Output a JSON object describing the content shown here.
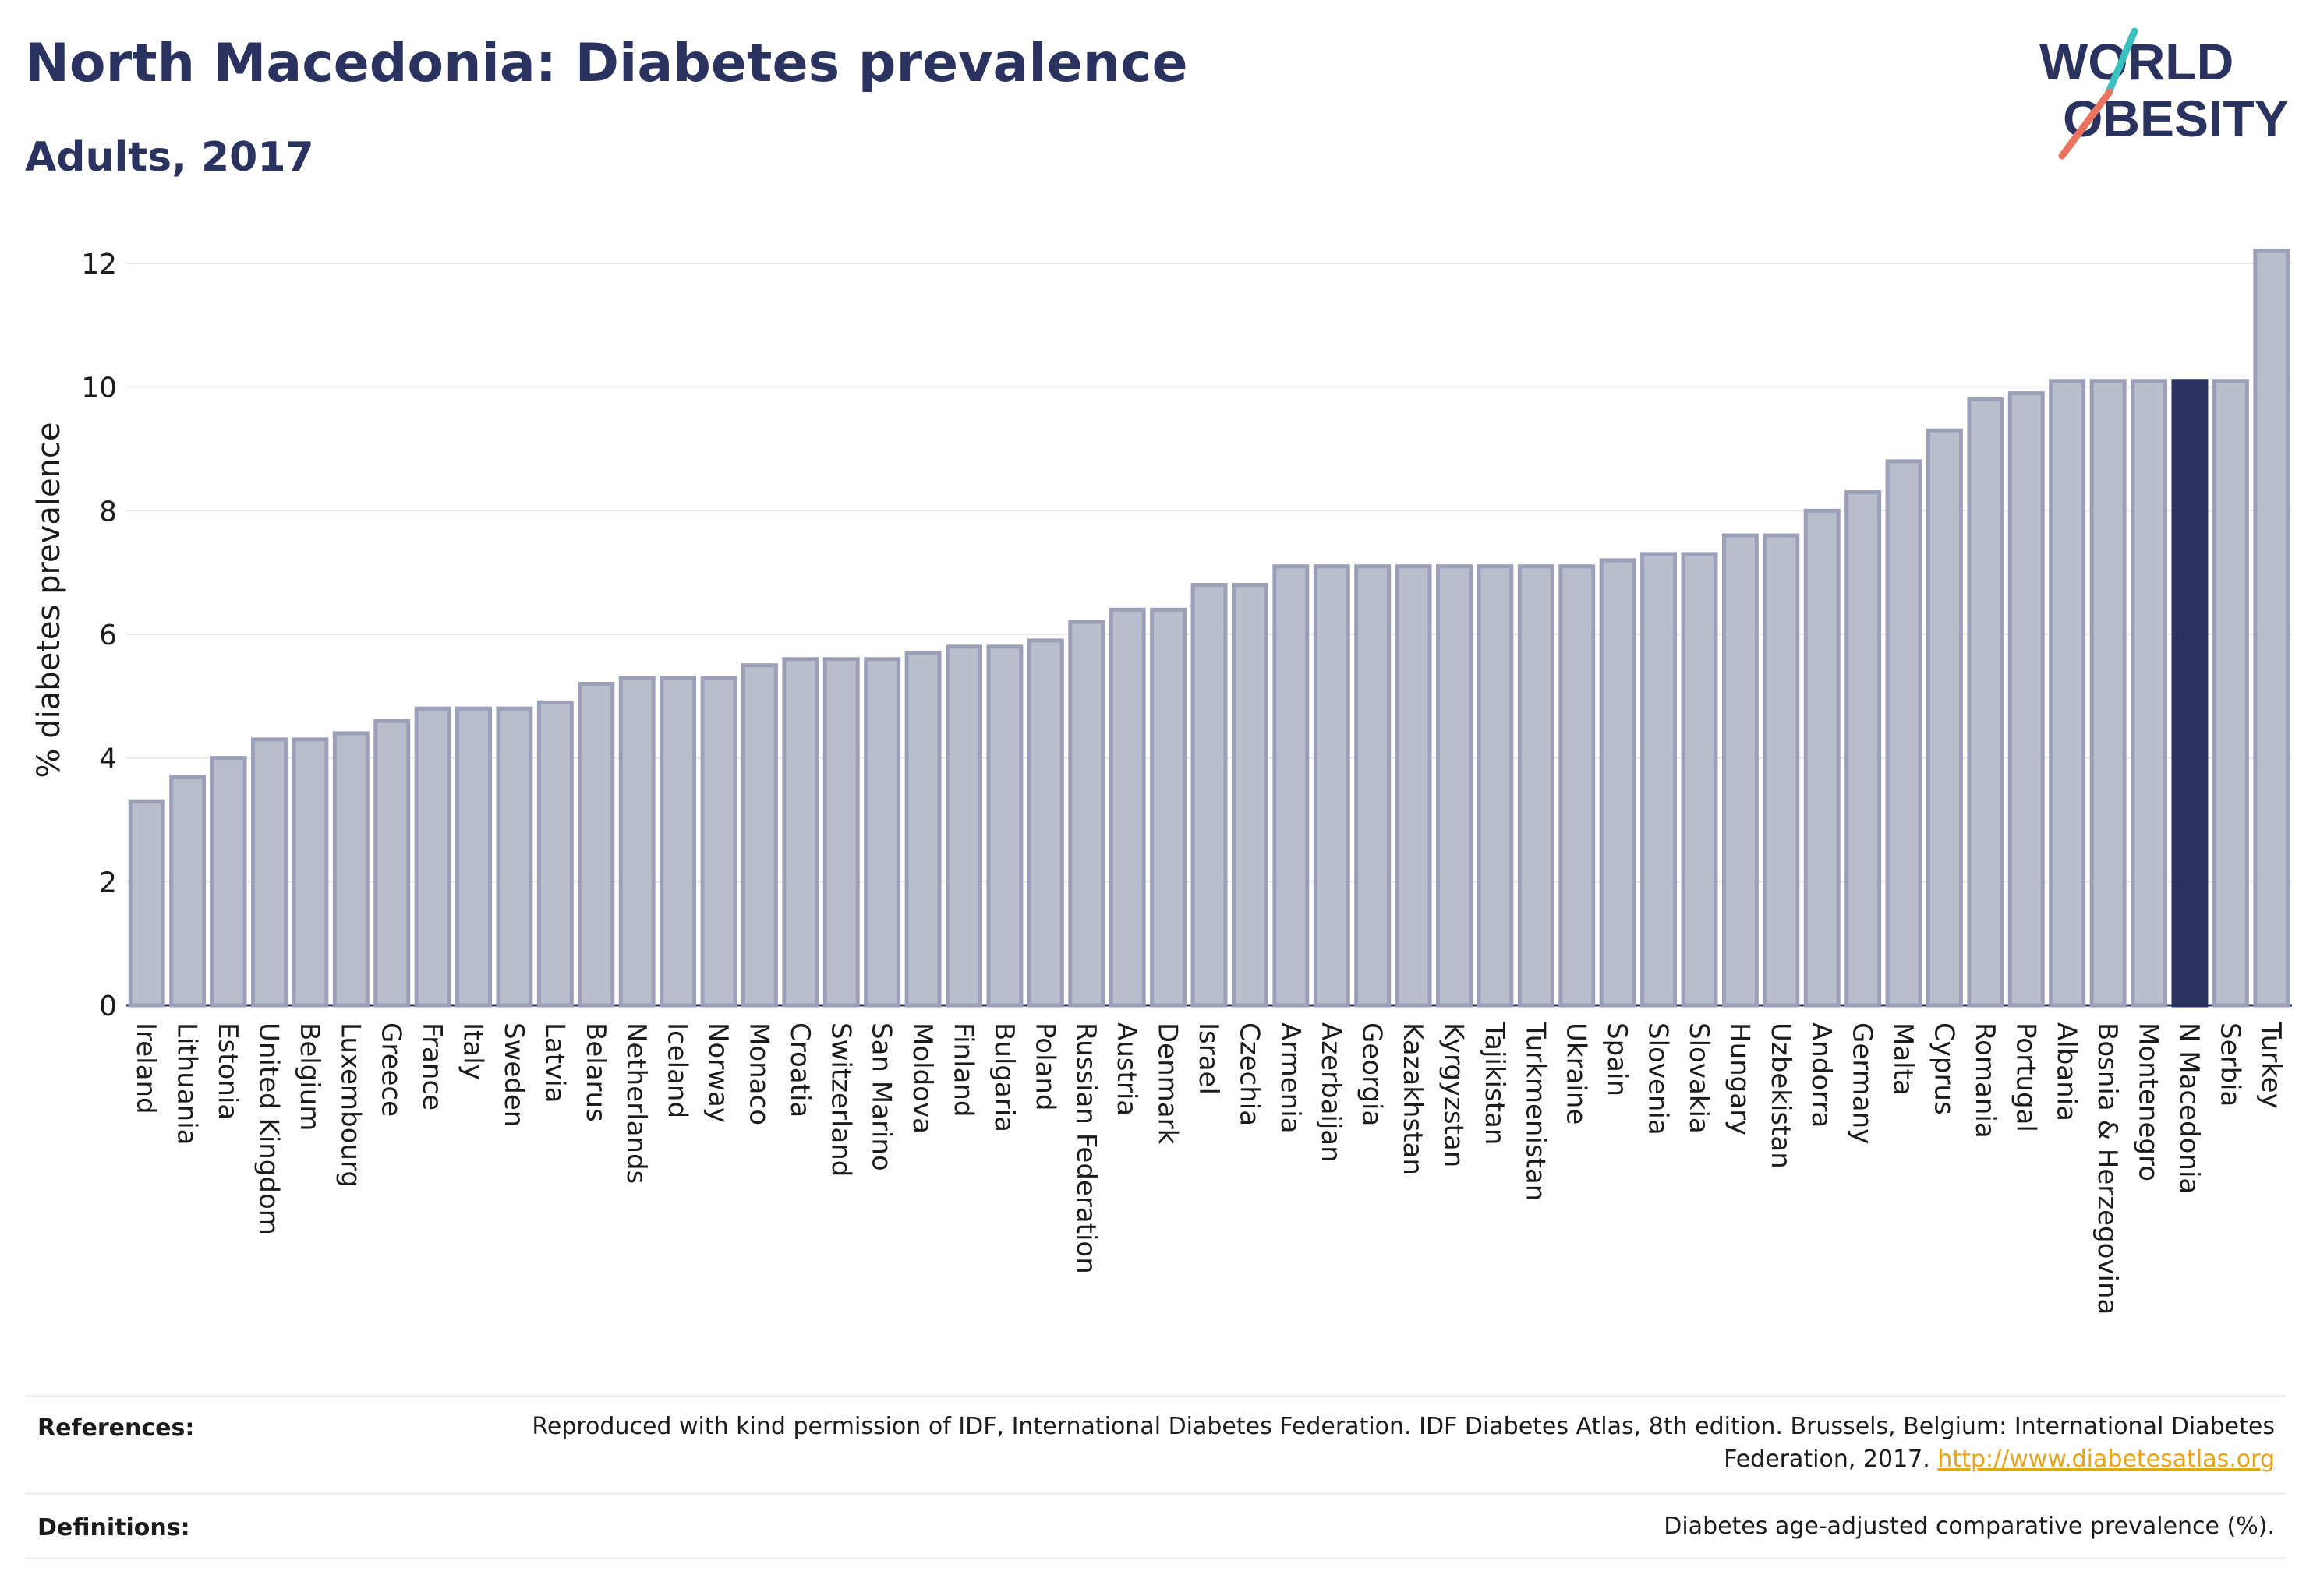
{
  "header": {
    "title": "North Macedonia: Diabetes prevalence",
    "subtitle": "Adults, 2017"
  },
  "logo": {
    "line1": "WORLD",
    "line2": "OBESITY"
  },
  "colors": {
    "bar": "#b9bdcc",
    "bar_stroke": "#9ba0b8",
    "highlight": "#2a3360",
    "grid": "#e6e6ea",
    "axis_text": "#1b1b1b",
    "logo_teal": "#3bbfbf",
    "logo_coral": "#e9735f",
    "link": "#e8a317"
  },
  "chart_data": {
    "type": "bar",
    "title": "North Macedonia: Diabetes prevalence",
    "subtitle": "Adults, 2017",
    "xlabel": "",
    "ylabel": "% diabetes prevalence",
    "ylim": [
      0,
      12.5
    ],
    "yticks": [
      0,
      2,
      4,
      6,
      8,
      10,
      12
    ],
    "grid": true,
    "highlight": "N Macedonia",
    "categories": [
      "Ireland",
      "Lithuania",
      "Estonia",
      "United Kingdom",
      "Belgium",
      "Luxembourg",
      "Greece",
      "France",
      "Italy",
      "Sweden",
      "Latvia",
      "Belarus",
      "Netherlands",
      "Iceland",
      "Norway",
      "Monaco",
      "Croatia",
      "Switzerland",
      "San Marino",
      "Moldova",
      "Finland",
      "Bulgaria",
      "Poland",
      "Russian Federation",
      "Austria",
      "Denmark",
      "Israel",
      "Czechia",
      "Armenia",
      "Azerbaijan",
      "Georgia",
      "Kazakhstan",
      "Kyrgyzstan",
      "Tajikistan",
      "Turkmenistan",
      "Ukraine",
      "Spain",
      "Slovenia",
      "Slovakia",
      "Hungary",
      "Uzbekistan",
      "Andorra",
      "Germany",
      "Malta",
      "Cyprus",
      "Romania",
      "Portugal",
      "Albania",
      "Bosnia & Herzegovina",
      "Montenegro",
      "N Macedonia",
      "Serbia",
      "Turkey"
    ],
    "values": [
      3.3,
      3.7,
      4.0,
      4.3,
      4.3,
      4.4,
      4.6,
      4.8,
      4.8,
      4.8,
      4.9,
      5.2,
      5.3,
      5.3,
      5.3,
      5.5,
      5.6,
      5.6,
      5.6,
      5.7,
      5.8,
      5.8,
      5.9,
      6.2,
      6.4,
      6.4,
      6.8,
      6.8,
      7.1,
      7.1,
      7.1,
      7.1,
      7.1,
      7.1,
      7.1,
      7.1,
      7.2,
      7.3,
      7.3,
      7.6,
      7.6,
      8.0,
      8.3,
      8.8,
      9.3,
      9.8,
      9.9,
      10.1,
      10.1,
      10.1,
      10.1,
      10.1,
      12.2
    ]
  },
  "footer": {
    "references_label": "References:",
    "references_text": "Reproduced with kind permission of IDF, International Diabetes Federation. IDF Diabetes Atlas, 8th edition. Brussels, Belgium: International Diabetes Federation, 2017.",
    "references_link": "http://www.diabetesatlas.org",
    "definitions_label": "Definitions:",
    "definitions_text": "Diabetes age-adjusted comparative prevalence (%)."
  }
}
